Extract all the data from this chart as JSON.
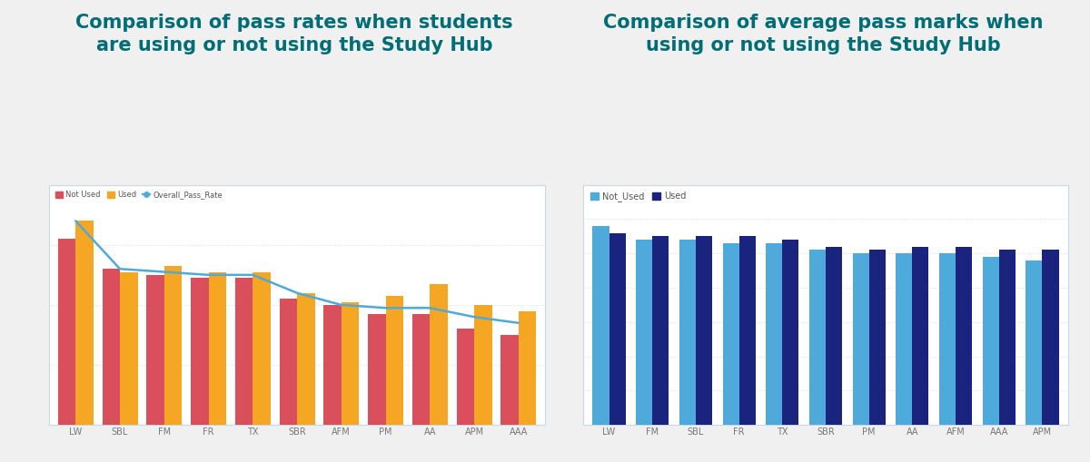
{
  "chart1": {
    "title": "Comparison of pass rates when students\nare using or not using the Study Hub",
    "categories": [
      "LW",
      "SBL",
      "FM",
      "FR",
      "TX",
      "SBR",
      "AFM",
      "PM",
      "AA",
      "APM",
      "AAA"
    ],
    "not_used": [
      62,
      52,
      50,
      49,
      49,
      42,
      40,
      37,
      37,
      32,
      30
    ],
    "used": [
      68,
      51,
      53,
      51,
      51,
      44,
      41,
      43,
      47,
      40,
      38
    ],
    "overall_pass_rate": [
      68,
      52,
      51,
      50,
      50,
      44,
      40,
      39,
      39,
      36,
      34
    ],
    "color_not_used": "#D94F5C",
    "color_used": "#F5A623",
    "color_line": "#4DAADB",
    "legend_labels": [
      "Not Used",
      "Used",
      "Overall_Pass_Rate"
    ]
  },
  "chart2": {
    "title": "Comparison of average pass marks when\nusing or not using the Study Hub",
    "categories": [
      "LW",
      "FM",
      "SBL",
      "FR",
      "TX",
      "SBR",
      "PM",
      "AA",
      "AFM",
      "AAA",
      "APM"
    ],
    "not_used": [
      58,
      54,
      54,
      53,
      53,
      51,
      50,
      50,
      50,
      49,
      48
    ],
    "used": [
      56,
      55,
      55,
      55,
      54,
      52,
      51,
      52,
      52,
      51,
      51
    ],
    "color_not_used": "#4DAADB",
    "color_used": "#1A237E",
    "legend_labels": [
      "Not_Used",
      "Used"
    ]
  },
  "title_color": "#006d77",
  "title_fontsize": 15,
  "background_color": "#f0f0f0",
  "panel_color": "#ffffff",
  "border_color": "#c8d8e8",
  "grid_color": "#dddddd"
}
